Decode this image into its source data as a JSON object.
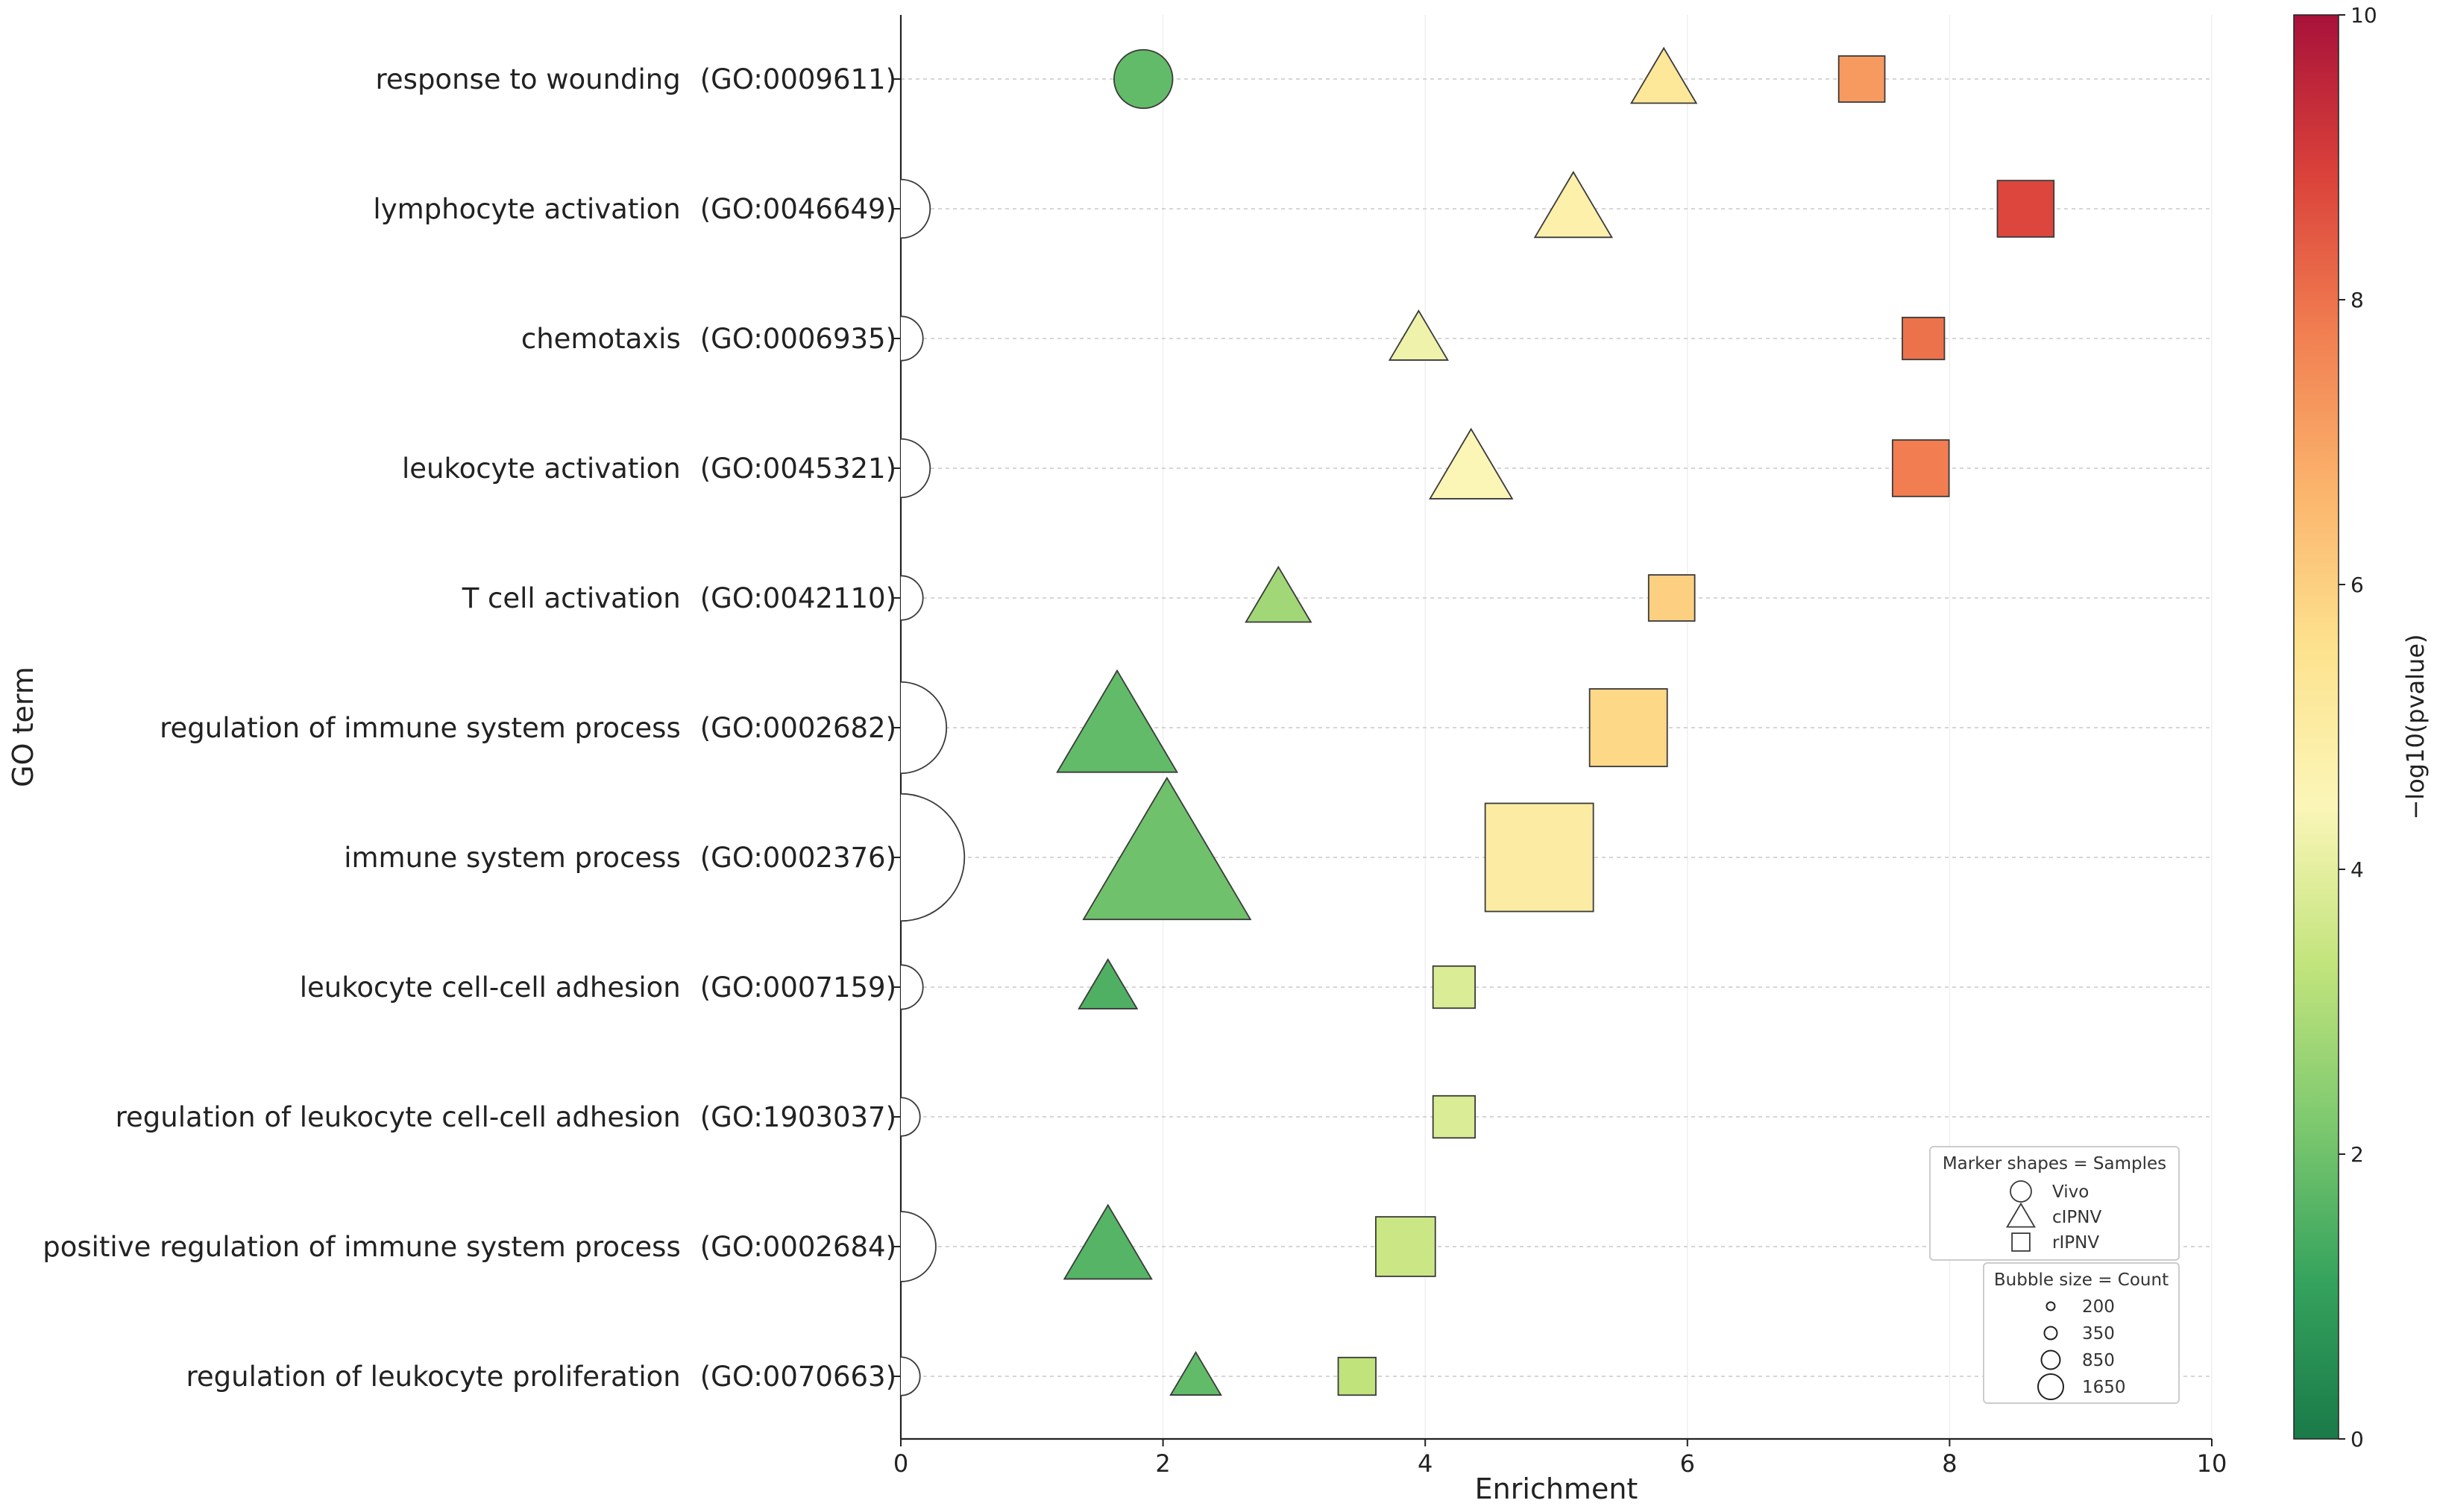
{
  "chart_data": {
    "type": "scatter",
    "title": "",
    "xlabel": "Enrichment",
    "ylabel": "GO term",
    "xlim": [
      0,
      10
    ],
    "x_ticks": [
      0,
      2,
      4,
      6,
      8,
      10
    ],
    "grid": "horizontal dotted lines at each GO term",
    "categories": [
      {
        "name": "response to wounding",
        "id": "(GO:0009611)"
      },
      {
        "name": "lymphocyte activation",
        "id": "(GO:0046649)"
      },
      {
        "name": "chemotaxis",
        "id": "(GO:0006935)"
      },
      {
        "name": "leukocyte activation",
        "id": "(GO:0045321)"
      },
      {
        "name": "T cell activation",
        "id": "(GO:0042110)"
      },
      {
        "name": "regulation of immune system process",
        "id": "(GO:0002682)"
      },
      {
        "name": "immune system process",
        "id": "(GO:0002376)"
      },
      {
        "name": "leukocyte cell-cell adhesion",
        "id": "(GO:0007159)"
      },
      {
        "name": "regulation of leukocyte cell-cell adhesion",
        "id": "(GO:1903037)"
      },
      {
        "name": "positive regulation of immune system process",
        "id": "(GO:0002684)"
      },
      {
        "name": "regulation of leukocyte proliferation",
        "id": "(GO:0070663)"
      }
    ],
    "series": [
      {
        "name": "Vivo",
        "marker": "circle",
        "points": [
          {
            "category": "response to wounding",
            "x": 1.85,
            "count": 350,
            "neglog10p": 1.8
          },
          {
            "category": "lymphocyte activation",
            "x": 0.0,
            "count": 350,
            "neglog10p": 5.0
          },
          {
            "category": "chemotaxis",
            "x": 0.0,
            "count": 200,
            "neglog10p": 5.0
          },
          {
            "category": "leukocyte activation",
            "x": 0.0,
            "count": 350,
            "neglog10p": 5.0
          },
          {
            "category": "T cell activation",
            "x": 0.0,
            "count": 200,
            "neglog10p": 5.0
          },
          {
            "category": "regulation of immune system process",
            "x": 0.0,
            "count": 850,
            "neglog10p": 5.0
          },
          {
            "category": "immune system process",
            "x": 0.0,
            "count": 1650,
            "neglog10p": 5.0
          },
          {
            "category": "leukocyte cell-cell adhesion",
            "x": 0.0,
            "count": 200,
            "neglog10p": 5.0
          },
          {
            "category": "regulation of leukocyte cell-cell adhesion",
            "x": 0.0,
            "count": 150,
            "neglog10p": 5.0
          },
          {
            "category": "positive regulation of immune system process",
            "x": 0.0,
            "count": 500,
            "neglog10p": 5.0
          },
          {
            "category": "regulation of leukocyte proliferation",
            "x": 0.0,
            "count": 150,
            "neglog10p": 5.0
          }
        ]
      },
      {
        "name": "cIPNV",
        "marker": "triangle",
        "points": [
          {
            "category": "response to wounding",
            "x": 5.82,
            "count": 250,
            "neglog10p": 5.3
          },
          {
            "category": "lymphocyte activation",
            "x": 5.13,
            "count": 350,
            "neglog10p": 4.8
          },
          {
            "category": "chemotaxis",
            "x": 3.95,
            "count": 200,
            "neglog10p": 4.2
          },
          {
            "category": "leukocyte activation",
            "x": 4.35,
            "count": 400,
            "neglog10p": 4.5
          },
          {
            "category": "T cell activation",
            "x": 2.88,
            "count": 250,
            "neglog10p": 2.8
          },
          {
            "category": "regulation of immune system process",
            "x": 1.65,
            "count": 850,
            "neglog10p": 1.8
          },
          {
            "category": "immune system process",
            "x": 2.03,
            "count": 1650,
            "neglog10p": 2.0
          },
          {
            "category": "leukocyte cell-cell adhesion",
            "x": 1.58,
            "count": 200,
            "neglog10p": 1.5
          },
          {
            "category": "positive regulation of immune system process",
            "x": 1.58,
            "count": 450,
            "neglog10p": 1.6
          },
          {
            "category": "regulation of leukocyte proliferation",
            "x": 2.25,
            "count": 150,
            "neglog10p": 1.8
          }
        ]
      },
      {
        "name": "rIPNV",
        "marker": "square",
        "points": [
          {
            "category": "response to wounding",
            "x": 7.33,
            "count": 300,
            "neglog10p": 7.2
          },
          {
            "category": "lymphocyte activation",
            "x": 8.58,
            "count": 450,
            "neglog10p": 8.8
          },
          {
            "category": "chemotaxis",
            "x": 7.8,
            "count": 250,
            "neglog10p": 8.0
          },
          {
            "category": "leukocyte activation",
            "x": 7.78,
            "count": 450,
            "neglog10p": 7.8
          },
          {
            "category": "T cell activation",
            "x": 5.88,
            "count": 300,
            "neglog10p": 6.0
          },
          {
            "category": "regulation of immune system process",
            "x": 5.55,
            "count": 850,
            "neglog10p": 5.8
          },
          {
            "category": "immune system process",
            "x": 4.87,
            "count": 1650,
            "neglog10p": 5.0
          },
          {
            "category": "leukocyte cell-cell adhesion",
            "x": 4.22,
            "count": 250,
            "neglog10p": 3.8
          },
          {
            "category": "regulation of leukocyte cell-cell adhesion",
            "x": 4.22,
            "count": 250,
            "neglog10p": 3.8
          },
          {
            "category": "positive regulation of immune system process",
            "x": 3.85,
            "count": 500,
            "neglog10p": 3.5
          },
          {
            "category": "regulation of leukocyte proliferation",
            "x": 3.48,
            "count": 200,
            "neglog10p": 3.3
          }
        ]
      }
    ],
    "colorbar": {
      "label": "−log10(pvalue)",
      "min": 0,
      "max": 10,
      "ticks": [
        0,
        2,
        4,
        6,
        8,
        10
      ],
      "colors": [
        "#1a7a49",
        "#35a35d",
        "#7ec96f",
        "#c2e47c",
        "#fbf6b8",
        "#fde28e",
        "#fbb46c",
        "#f17e51",
        "#da413a",
        "#a8123a"
      ]
    },
    "legend_shapes": {
      "title": "Marker shapes = Samples",
      "placement": "lower-right",
      "items": [
        {
          "label": "Vivo",
          "shape": "circle"
        },
        {
          "label": "cIPNV",
          "shape": "triangle"
        },
        {
          "label": "rIPNV",
          "shape": "square"
        }
      ]
    },
    "legend_sizes": {
      "title": "Bubble size = Count",
      "placement": "lower-right",
      "items": [
        {
          "label": "200",
          "count": 200
        },
        {
          "label": "350",
          "count": 350
        },
        {
          "label": "850",
          "count": 850
        },
        {
          "label": "1650",
          "count": 1650
        }
      ]
    }
  }
}
